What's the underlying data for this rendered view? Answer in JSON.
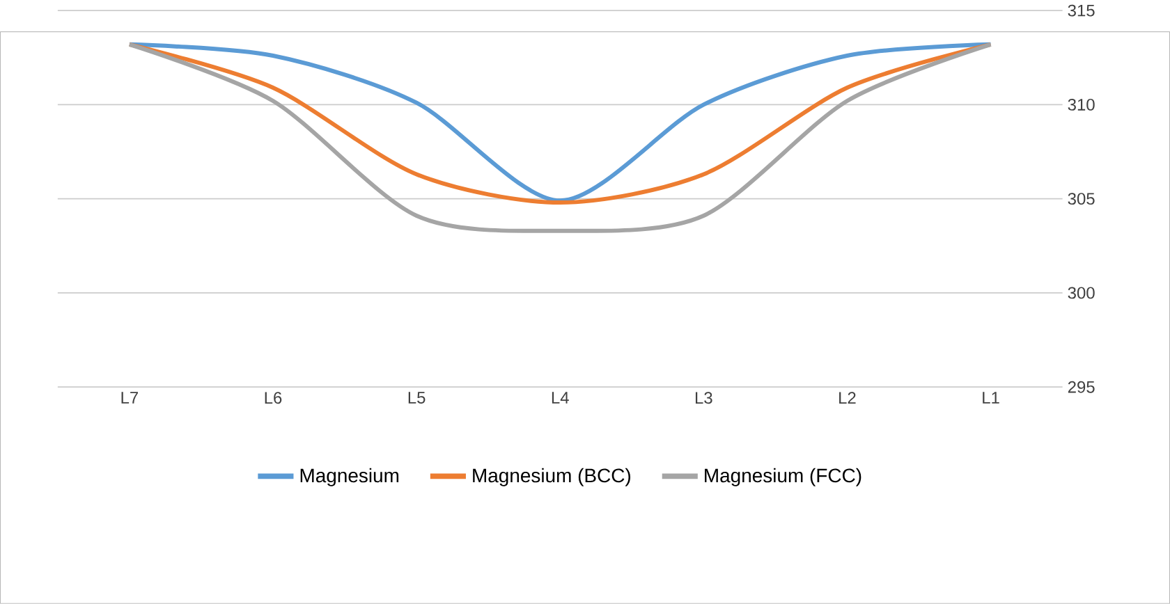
{
  "chart_data": {
    "type": "line",
    "categories": [
      "L7",
      "L6",
      "L5",
      "L4",
      "L3",
      "L2",
      "L1"
    ],
    "series": [
      {
        "name": "Magnesium",
        "color": "#5b9bd5",
        "values": [
          313.2,
          312.6,
          310.1,
          304.9,
          310.0,
          312.6,
          313.2
        ]
      },
      {
        "name": "Magnesium (BCC)",
        "color": "#ed7d31",
        "values": [
          313.2,
          310.9,
          306.3,
          304.8,
          306.3,
          310.9,
          313.2
        ]
      },
      {
        "name": "Magnesium (FCC)",
        "color": "#a5a5a5",
        "values": [
          313.2,
          310.2,
          304.1,
          303.3,
          304.1,
          310.2,
          313.2
        ]
      }
    ],
    "ylim": [
      295,
      315
    ],
    "yticks": [
      295,
      300,
      305,
      310,
      315
    ],
    "grid": "y",
    "legend": "bottom",
    "marker": "none",
    "line_style": "solid"
  }
}
